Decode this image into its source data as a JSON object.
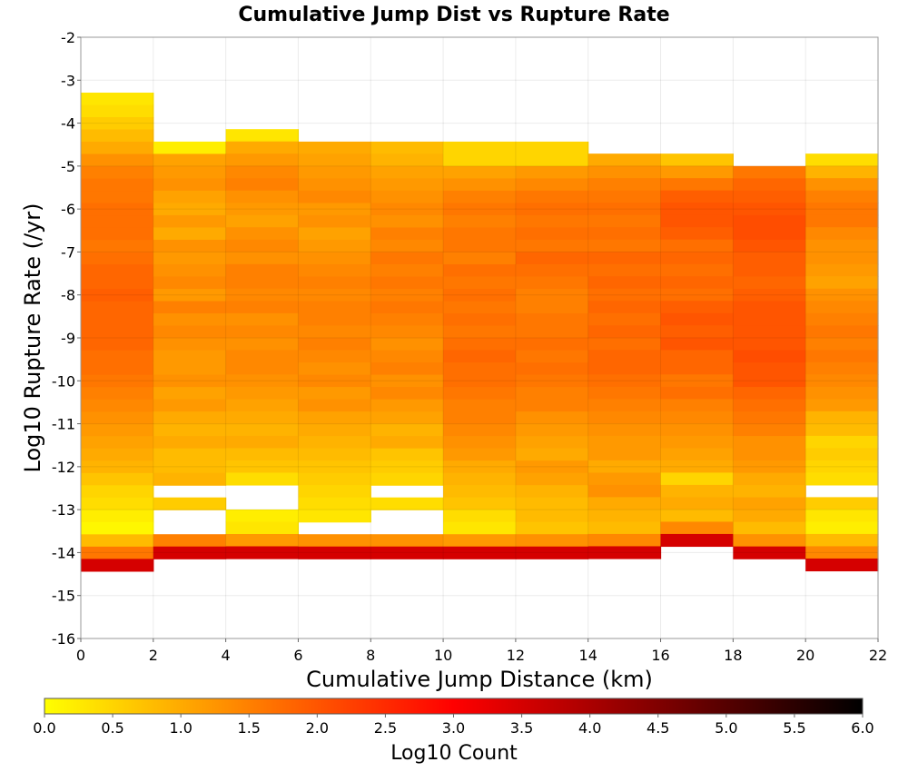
{
  "chart_data": {
    "type": "heatmap",
    "title": "Cumulative Jump Dist vs Rupture Rate",
    "xlabel": "Cumulative Jump Distance (km)",
    "ylabel": "Log10 Rupture Rate (/yr)",
    "xlim": [
      0,
      22
    ],
    "ylim": [
      -16,
      -2
    ],
    "x_ticks": [
      "0",
      "2",
      "4",
      "6",
      "8",
      "10",
      "12",
      "14",
      "16",
      "18",
      "20",
      "22"
    ],
    "y_ticks": [
      "-2",
      "-3",
      "-4",
      "-5",
      "-6",
      "-7",
      "-8",
      "-9",
      "-10",
      "-11",
      "-12",
      "-13",
      "-14",
      "-15",
      "-16"
    ],
    "x_bin_edges": [
      0,
      2,
      4,
      6,
      8,
      10,
      12,
      14,
      16,
      18,
      20,
      22
    ],
    "y_bin_size": 0.2857,
    "grid": true,
    "color_scale": {
      "label": "Log10 Count",
      "min": 0.0,
      "max": 6.0,
      "ticks": [
        "0.0",
        "0.5",
        "1.0",
        "1.5",
        "2.0",
        "2.5",
        "3.0",
        "3.5",
        "4.0",
        "4.5",
        "5.0",
        "5.5",
        "6.0"
      ],
      "colors": [
        "#ffff00",
        "#ff8000",
        "#ff0000",
        "#800000",
        "#000000"
      ]
    },
    "columns": [
      {
        "x_start": 0,
        "x_end": 2,
        "y_top": -3.29,
        "values": [
          0.3,
          0.4,
          0.6,
          0.8,
          1.0,
          1.3,
          1.5,
          1.6,
          1.6,
          1.7,
          1.7,
          1.7,
          1.6,
          1.7,
          1.8,
          1.8,
          1.9,
          1.8,
          1.8,
          1.8,
          1.8,
          1.7,
          1.7,
          1.6,
          1.5,
          1.4,
          1.3,
          1.2,
          1.1,
          1.0,
          0.9,
          0.7,
          0.5,
          0.4,
          0.2,
          0.1,
          0.8,
          1.6,
          3.5
        ]
      },
      {
        "x_start": 2,
        "x_end": 4,
        "y_top": -4.43,
        "values": [
          0.2,
          1.1,
          1.2,
          1.3,
          1.1,
          1.0,
          1.2,
          1.0,
          1.3,
          1.2,
          1.3,
          1.4,
          1.2,
          1.5,
          1.3,
          1.4,
          1.3,
          1.2,
          1.2,
          1.3,
          1.1,
          1.2,
          1.0,
          0.9,
          1.0,
          0.8,
          0.8,
          0.9,
          null,
          0.6,
          null,
          null,
          1.5,
          3.5
        ]
      },
      {
        "x_start": 4,
        "x_end": 6,
        "y_top": -4.14,
        "values": [
          0.3,
          1.0,
          1.2,
          1.4,
          1.5,
          1.3,
          1.2,
          1.1,
          1.3,
          1.4,
          1.3,
          1.5,
          1.5,
          1.4,
          1.5,
          1.3,
          1.4,
          1.3,
          1.4,
          1.4,
          1.3,
          1.2,
          1.1,
          1.0,
          0.9,
          1.0,
          0.8,
          0.7,
          0.4,
          null,
          null,
          0.2,
          0.3,
          1.2,
          3.5
        ]
      },
      {
        "x_start": 6,
        "x_end": 8,
        "y_top": -4.43,
        "values": [
          1.0,
          1.1,
          1.2,
          1.3,
          1.4,
          1.2,
          1.3,
          1.1,
          1.2,
          1.3,
          1.4,
          1.5,
          1.4,
          1.5,
          1.5,
          1.4,
          1.5,
          1.4,
          1.3,
          1.4,
          1.2,
          1.3,
          1.1,
          1.0,
          0.9,
          0.8,
          0.7,
          0.6,
          0.5,
          0.4,
          0.3,
          null,
          1.3,
          3.5
        ]
      },
      {
        "x_start": 8,
        "x_end": 10,
        "y_top": -4.43,
        "values": [
          0.8,
          0.9,
          1.1,
          1.2,
          1.3,
          1.4,
          1.3,
          1.5,
          1.4,
          1.6,
          1.5,
          1.6,
          1.5,
          1.6,
          1.5,
          1.4,
          1.3,
          1.4,
          1.5,
          1.3,
          1.4,
          1.2,
          1.1,
          0.9,
          1.0,
          0.7,
          0.6,
          0.5,
          null,
          0.4,
          null,
          null,
          1.3,
          3.5
        ]
      },
      {
        "x_start": 10,
        "x_end": 12,
        "y_top": -4.43,
        "values": [
          0.5,
          0.5,
          1.1,
          1.3,
          1.5,
          1.6,
          1.5,
          1.6,
          1.6,
          1.5,
          1.7,
          1.6,
          1.7,
          1.6,
          1.7,
          1.6,
          1.7,
          1.8,
          1.7,
          1.7,
          1.6,
          1.5,
          1.5,
          1.4,
          1.3,
          1.2,
          1.0,
          0.9,
          0.8,
          0.7,
          0.4,
          0.3,
          1.2,
          3.5
        ]
      },
      {
        "x_start": 12,
        "x_end": 14,
        "y_top": -4.43,
        "values": [
          0.5,
          0.5,
          1.2,
          1.4,
          1.6,
          1.7,
          1.6,
          1.7,
          1.6,
          1.8,
          1.7,
          1.6,
          1.5,
          1.5,
          1.6,
          1.6,
          1.7,
          1.6,
          1.7,
          1.6,
          1.5,
          1.5,
          1.3,
          1.2,
          1.1,
          1.0,
          1.2,
          1.1,
          0.9,
          0.8,
          0.8,
          0.7,
          1.3,
          3.5
        ]
      },
      {
        "x_start": 14,
        "x_end": 16,
        "y_top": -4.71,
        "values": [
          1.0,
          1.3,
          1.5,
          1.6,
          1.7,
          1.6,
          1.7,
          1.6,
          1.8,
          1.7,
          1.8,
          1.7,
          1.8,
          1.7,
          1.8,
          1.7,
          1.8,
          1.8,
          1.7,
          1.6,
          1.5,
          1.4,
          1.3,
          1.2,
          1.2,
          1.0,
          1.2,
          1.3,
          1.0,
          0.9,
          0.8,
          1.4,
          3.5
        ]
      },
      {
        "x_start": 16,
        "x_end": 18,
        "y_top": -4.71,
        "values": [
          0.7,
          1.2,
          1.6,
          1.9,
          2.0,
          2.0,
          1.9,
          1.7,
          1.8,
          1.7,
          1.8,
          1.7,
          1.9,
          2.0,
          1.9,
          2.0,
          1.8,
          1.8,
          1.6,
          1.7,
          1.5,
          1.4,
          1.3,
          1.2,
          1.1,
          1.0,
          0.5,
          0.9,
          1.0,
          0.8,
          1.4,
          3.5
        ]
      },
      {
        "x_start": 18,
        "x_end": 20,
        "y_top": -5.0,
        "values": [
          1.6,
          1.8,
          1.9,
          2.0,
          2.1,
          2.1,
          2.0,
          1.9,
          1.9,
          1.8,
          1.9,
          2.0,
          2.0,
          2.0,
          2.0,
          2.1,
          2.0,
          2.0,
          1.8,
          1.7,
          1.6,
          1.5,
          1.3,
          1.3,
          1.2,
          1.0,
          0.9,
          1.1,
          1.0,
          0.8,
          1.3,
          3.5
        ]
      },
      {
        "x_start": 20,
        "x_end": 22,
        "y_top": -4.71,
        "values": [
          0.4,
          0.9,
          1.3,
          1.5,
          1.6,
          1.6,
          1.4,
          1.3,
          1.3,
          1.2,
          1.1,
          1.3,
          1.4,
          1.5,
          1.6,
          1.5,
          1.6,
          1.5,
          1.4,
          1.3,
          1.2,
          0.9,
          0.8,
          0.5,
          0.6,
          0.5,
          0.4,
          null,
          0.6,
          0.3,
          0.2,
          0.8,
          1.4,
          3.5
        ]
      }
    ]
  }
}
